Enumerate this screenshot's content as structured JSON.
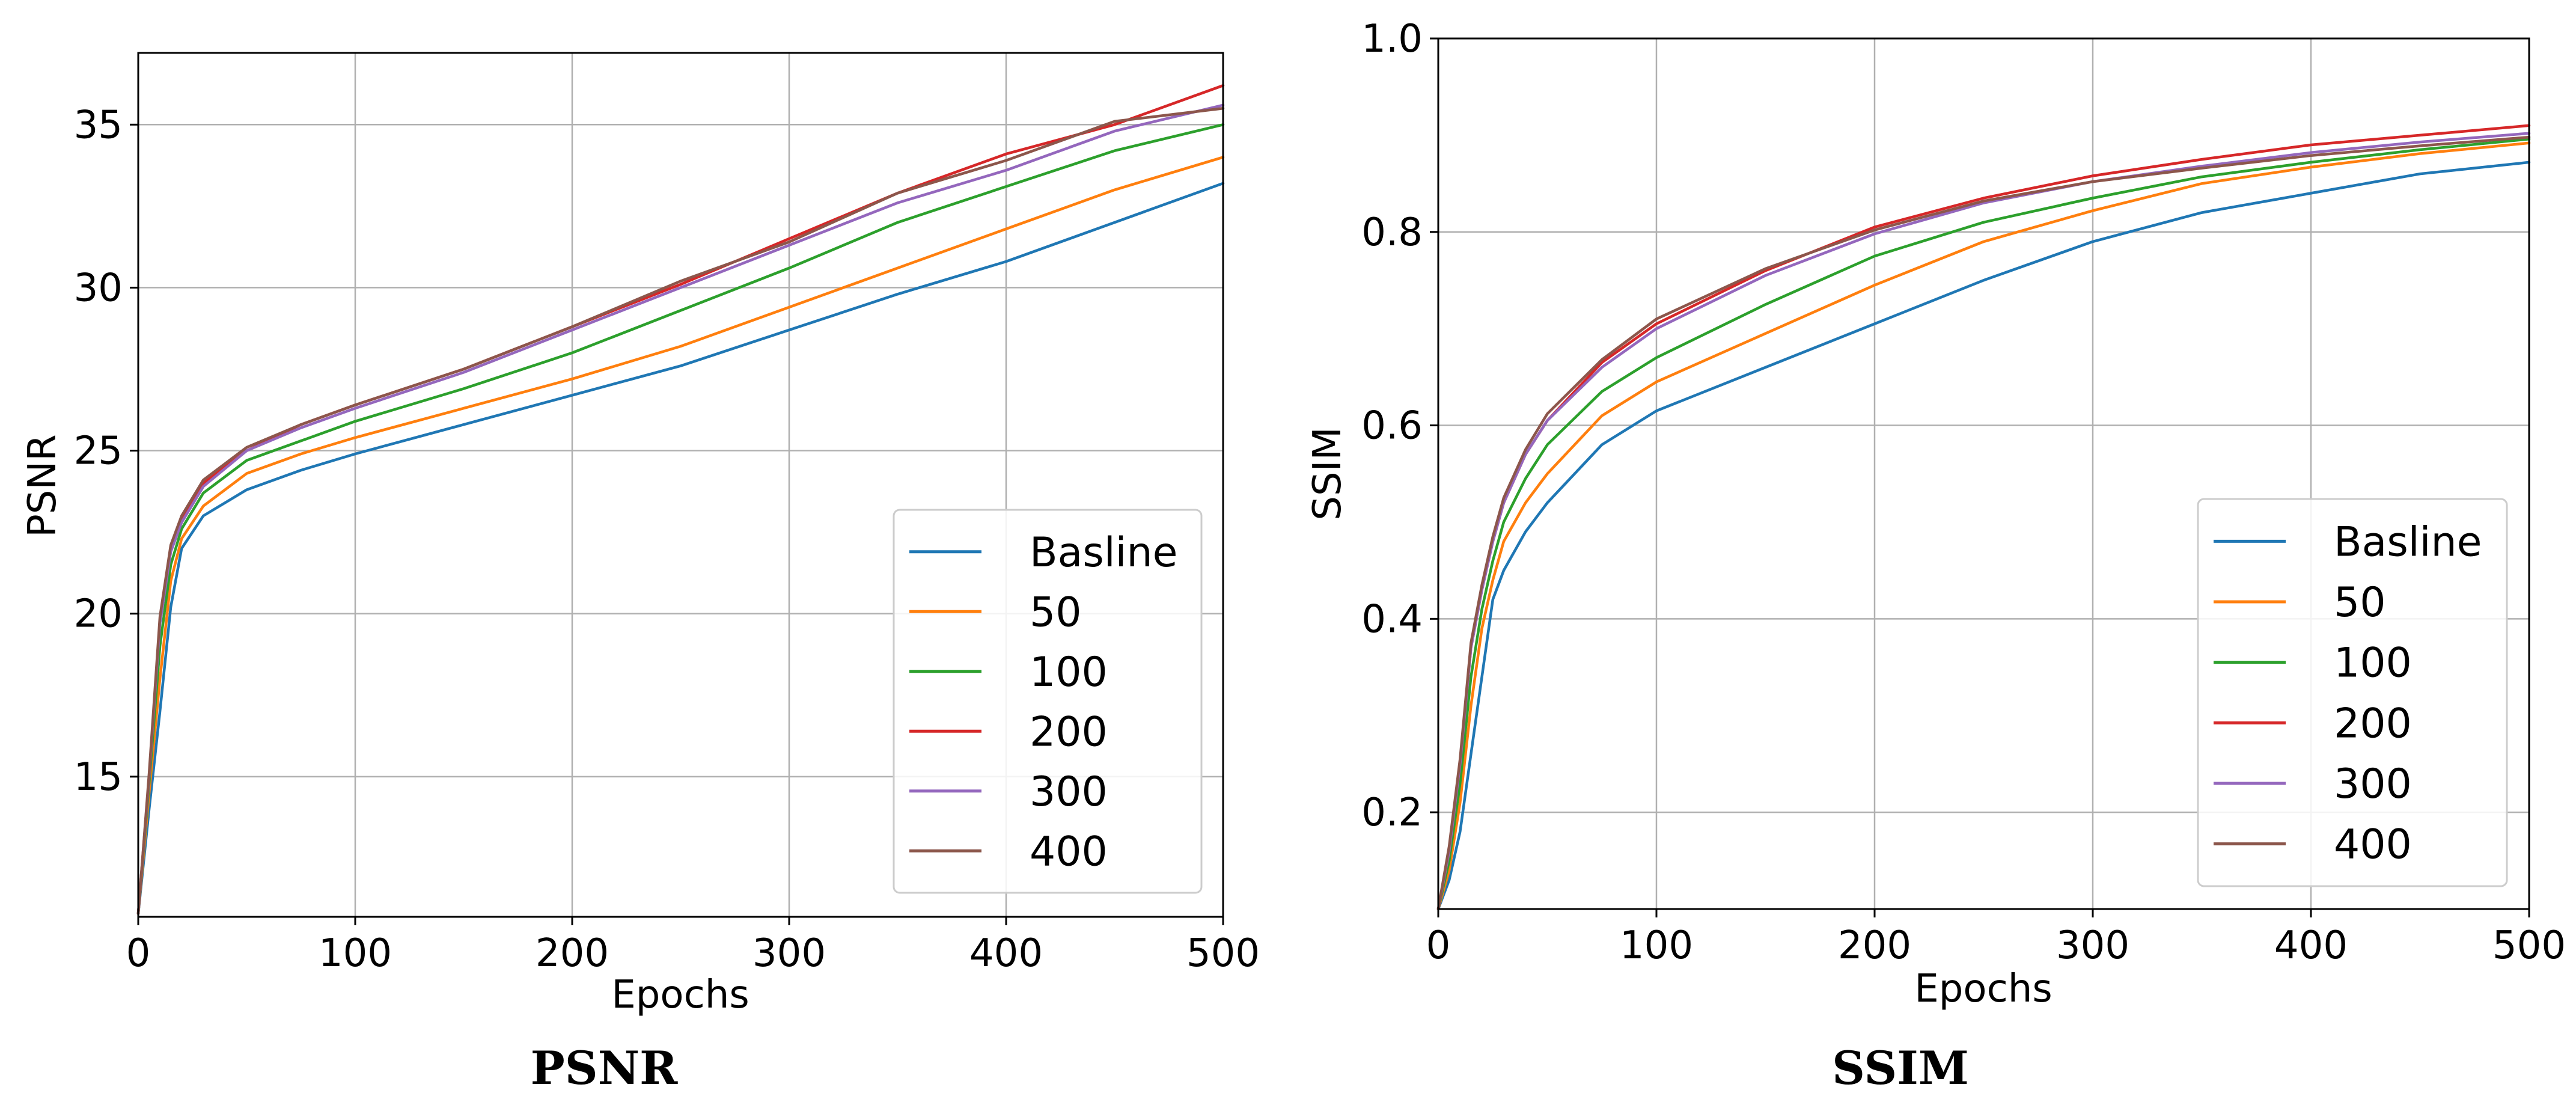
{
  "colors": {
    "Basline": "#1f77b4",
    "50": "#ff7f0e",
    "100": "#2ca02c",
    "200": "#d62728",
    "300": "#9467bd",
    "400": "#8c564b"
  },
  "chart_data": [
    {
      "type": "line",
      "id": "psnr",
      "caption": "PSNR",
      "xlabel": "Epochs",
      "ylabel": "PSNR",
      "xlim": [
        0,
        500
      ],
      "ylim": [
        10.7,
        37.2
      ],
      "xticks": [
        0,
        100,
        200,
        300,
        400,
        500
      ],
      "yticks": [
        15,
        20,
        25,
        30,
        35
      ],
      "grid": true,
      "legend_position": "lower-right",
      "x": [
        0,
        5,
        10,
        15,
        20,
        30,
        50,
        75,
        100,
        150,
        200,
        250,
        300,
        350,
        400,
        450,
        500
      ],
      "series": [
        {
          "name": "Basline",
          "values": [
            10.8,
            14.0,
            17.0,
            20.2,
            22.0,
            23.0,
            23.8,
            24.4,
            24.9,
            25.8,
            26.7,
            27.6,
            28.7,
            29.8,
            30.8,
            32.0,
            33.2
          ]
        },
        {
          "name": "50",
          "values": [
            10.8,
            14.5,
            18.0,
            21.0,
            22.3,
            23.3,
            24.3,
            24.9,
            25.4,
            26.3,
            27.2,
            28.2,
            29.4,
            30.6,
            31.8,
            33.0,
            34.0
          ]
        },
        {
          "name": "100",
          "values": [
            10.8,
            14.8,
            19.0,
            21.5,
            22.6,
            23.7,
            24.7,
            25.3,
            25.9,
            26.9,
            28.0,
            29.3,
            30.6,
            32.0,
            33.1,
            34.2,
            35.0
          ]
        },
        {
          "name": "200",
          "values": [
            10.8,
            15.0,
            19.8,
            22.0,
            22.9,
            24.0,
            25.0,
            25.8,
            26.4,
            27.5,
            28.8,
            30.1,
            31.5,
            32.9,
            34.1,
            35.0,
            36.2
          ]
        },
        {
          "name": "300",
          "values": [
            10.8,
            15.0,
            19.7,
            21.9,
            22.8,
            23.9,
            25.0,
            25.7,
            26.3,
            27.4,
            28.7,
            30.0,
            31.3,
            32.6,
            33.6,
            34.8,
            35.6
          ]
        },
        {
          "name": "400",
          "values": [
            10.8,
            15.1,
            19.9,
            22.1,
            23.0,
            24.1,
            25.1,
            25.8,
            26.4,
            27.5,
            28.8,
            30.2,
            31.4,
            32.9,
            33.9,
            35.1,
            35.5
          ]
        }
      ]
    },
    {
      "type": "line",
      "id": "ssim",
      "caption": "SSIM",
      "xlabel": "Epochs",
      "ylabel": "SSIM",
      "xlim": [
        0,
        500
      ],
      "ylim": [
        0.1,
        1.0
      ],
      "xticks": [
        0,
        100,
        200,
        300,
        400,
        500
      ],
      "yticks": [
        0.2,
        0.4,
        0.6,
        0.8,
        1.0
      ],
      "grid": true,
      "legend_position": "lower-right",
      "x": [
        0,
        5,
        10,
        15,
        20,
        25,
        30,
        40,
        50,
        75,
        100,
        150,
        200,
        250,
        300,
        350,
        400,
        450,
        500
      ],
      "series": [
        {
          "name": "Basline",
          "values": [
            0.1,
            0.13,
            0.18,
            0.26,
            0.34,
            0.42,
            0.45,
            0.49,
            0.52,
            0.58,
            0.615,
            0.66,
            0.705,
            0.75,
            0.79,
            0.82,
            0.84,
            0.86,
            0.872
          ]
        },
        {
          "name": "50",
          "values": [
            0.1,
            0.14,
            0.21,
            0.31,
            0.39,
            0.44,
            0.48,
            0.52,
            0.55,
            0.61,
            0.645,
            0.695,
            0.745,
            0.79,
            0.822,
            0.85,
            0.867,
            0.881,
            0.892
          ]
        },
        {
          "name": "100",
          "values": [
            0.1,
            0.15,
            0.23,
            0.34,
            0.41,
            0.46,
            0.5,
            0.545,
            0.58,
            0.635,
            0.67,
            0.725,
            0.775,
            0.81,
            0.835,
            0.857,
            0.872,
            0.885,
            0.896
          ]
        },
        {
          "name": "200",
          "values": [
            0.1,
            0.16,
            0.25,
            0.37,
            0.43,
            0.48,
            0.52,
            0.57,
            0.605,
            0.665,
            0.705,
            0.76,
            0.805,
            0.835,
            0.858,
            0.875,
            0.89,
            0.9,
            0.91
          ]
        },
        {
          "name": "300",
          "values": [
            0.1,
            0.16,
            0.25,
            0.37,
            0.43,
            0.48,
            0.52,
            0.57,
            0.605,
            0.66,
            0.7,
            0.755,
            0.798,
            0.83,
            0.852,
            0.868,
            0.882,
            0.893,
            0.902
          ]
        },
        {
          "name": "400",
          "values": [
            0.1,
            0.165,
            0.255,
            0.375,
            0.435,
            0.485,
            0.525,
            0.575,
            0.612,
            0.668,
            0.71,
            0.762,
            0.802,
            0.832,
            0.852,
            0.866,
            0.879,
            0.889,
            0.898
          ]
        }
      ]
    }
  ]
}
